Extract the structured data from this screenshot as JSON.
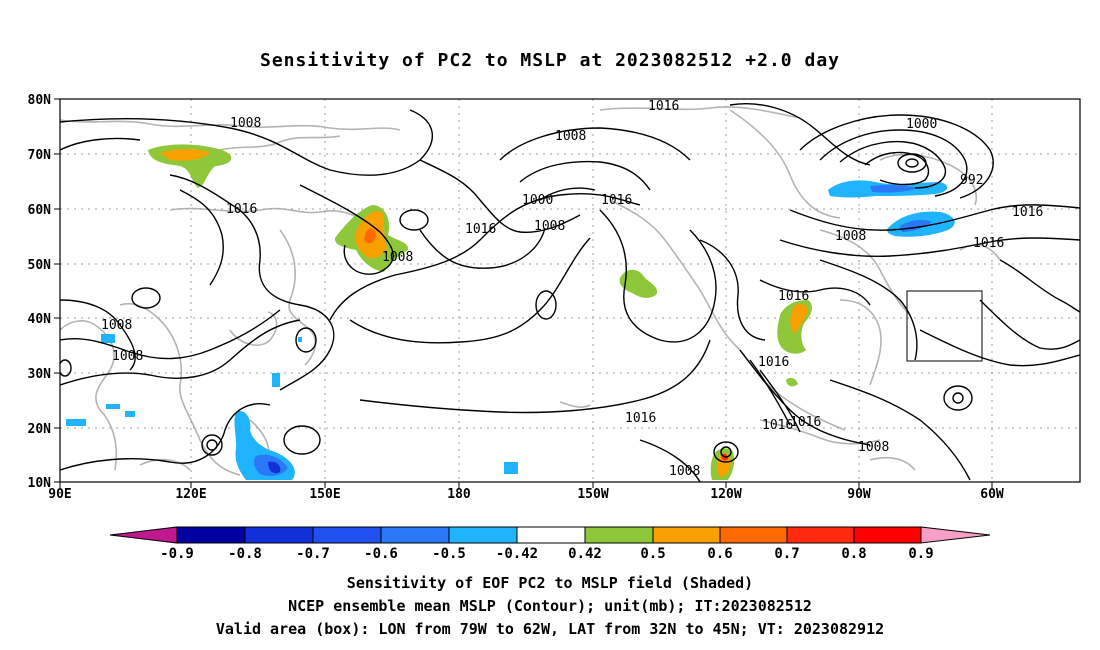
{
  "title": "Sensitivity of PC2 to MSLP at 2023082512 +2.0 day",
  "map": {
    "lon_labels": [
      "90E",
      "120E",
      "150E",
      "180",
      "150W",
      "120W",
      "90W",
      "60W"
    ],
    "lat_labels": [
      "80N",
      "70N",
      "60N",
      "50N",
      "40N",
      "30N",
      "20N",
      "10N"
    ],
    "contour_labels": [
      {
        "id": "c1016a",
        "text": "1016"
      },
      {
        "id": "c1008a",
        "text": "1008"
      },
      {
        "id": "c1016b",
        "text": "1016"
      },
      {
        "id": "c1008b",
        "text": "1008"
      },
      {
        "id": "c1008c",
        "text": "1008"
      },
      {
        "id": "c1008d",
        "text": "1008"
      },
      {
        "id": "c1008e",
        "text": "1008"
      },
      {
        "id": "c1016c",
        "text": "1016"
      },
      {
        "id": "c1000a",
        "text": "1000"
      },
      {
        "id": "c1008f",
        "text": "1008"
      },
      {
        "id": "c1016d",
        "text": "1016"
      },
      {
        "id": "c1016e",
        "text": "1016"
      },
      {
        "id": "c1000b",
        "text": "1000"
      },
      {
        "id": "c992",
        "text": "992"
      },
      {
        "id": "c1016f",
        "text": "1016"
      },
      {
        "id": "c1008g",
        "text": "1008"
      },
      {
        "id": "c1016g",
        "text": "1016"
      },
      {
        "id": "c1016h",
        "text": "1016"
      },
      {
        "id": "c1016i",
        "text": "1016"
      },
      {
        "id": "c1016j",
        "text": "1016"
      },
      {
        "id": "c1008h",
        "text": "1008"
      },
      {
        "id": "c1008i",
        "text": "1008"
      },
      {
        "id": "c1016k",
        "text": "1016"
      }
    ]
  },
  "colorbar": {
    "ticks": [
      "-0.9",
      "-0.8",
      "-0.7",
      "-0.6",
      "-0.5",
      "-0.42",
      "0.42",
      "0.5",
      "0.6",
      "0.7",
      "0.8",
      "0.9"
    ],
    "colors": [
      "#0000a0",
      "#1030d8",
      "#2050f0",
      "#2a78f5",
      "#20b4ff",
      "#ffffff",
      "#8ec83a",
      "#f7a000",
      "#ff6a00",
      "#ff2a10",
      "#ff0000"
    ],
    "low_end_color": "#c01890",
    "high_end_color": "#f6a0c8"
  },
  "captions": {
    "line1": "Sensitivity of EOF PC2 to MSLP field (Shaded)",
    "line2": "NCEP ensemble mean MSLP (Contour); unit(mb); IT:2023082512",
    "line3": "Valid area (box): LON from 79W to 62W, LAT from 32N to 45N; VT: 2023082912"
  }
}
